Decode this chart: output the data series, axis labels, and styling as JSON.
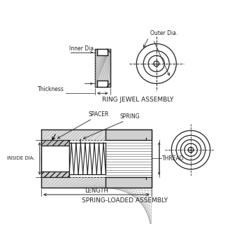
{
  "bg_color": "#ffffff",
  "line_color": "#222222",
  "title1": "RING JEWEL ASSEMBLY",
  "title2": "SPRING-LOADED ASSEMBLY",
  "label_inner_dia": "Inner Dia.",
  "label_outer_dia": "Outer Dia.",
  "label_thickness": "Thickness",
  "label_spacer": "SPACER",
  "label_spring": "SPRING",
  "label_inside_dia": "INSIDE DIA.",
  "label_thread": "THREAD",
  "label_length": "LENGTH"
}
